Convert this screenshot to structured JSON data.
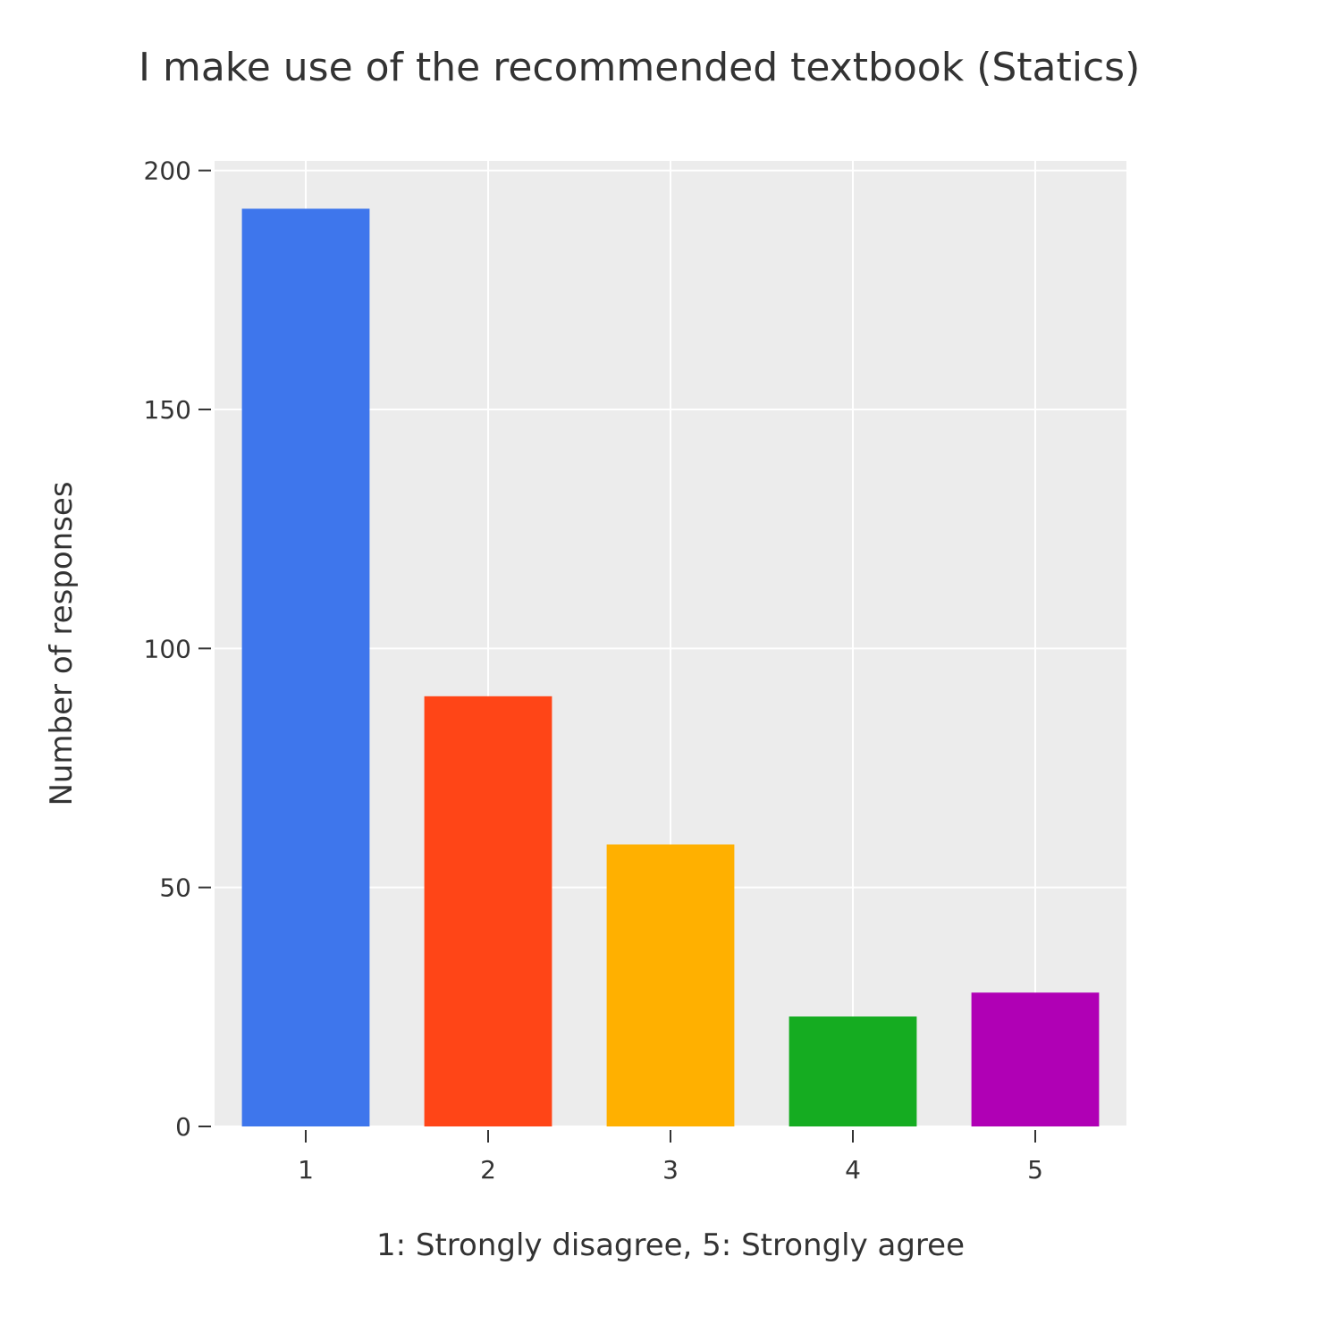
{
  "chart_data": {
    "type": "bar",
    "title": "I make use of the recommended textbook (Statics)",
    "xlabel": "1: Strongly disagree, 5: Strongly agree",
    "ylabel": "Number of responses",
    "categories": [
      "1",
      "2",
      "3",
      "4",
      "5"
    ],
    "values": [
      192,
      90,
      59,
      23,
      28
    ],
    "colors": [
      "#3e76ec",
      "#ff4517",
      "#ffb000",
      "#15ac21",
      "#b000b5"
    ],
    "ylim": [
      0,
      202
    ],
    "yticks": [
      0,
      50,
      100,
      150,
      200
    ],
    "ytick_labels": [
      "0",
      "50",
      "100",
      "150",
      "200"
    ],
    "grid": true,
    "plot_background": "#ececec",
    "legend": "none"
  }
}
